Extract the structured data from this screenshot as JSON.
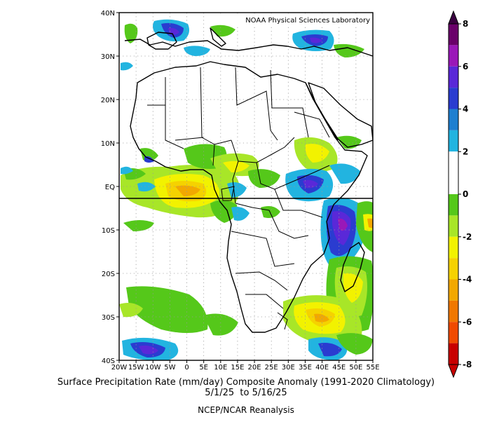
{
  "credit": "NOAA Physical Sciences Laboratory",
  "lat_labels": [
    "40N",
    "30N",
    "20N",
    "10N",
    "EQ",
    "10S",
    "20S",
    "30S",
    "40S"
  ],
  "lon_labels": [
    "20W",
    "15W",
    "10W",
    "5W",
    "0",
    "5E",
    "10E",
    "15E",
    "20E",
    "25E",
    "30E",
    "35E",
    "40E",
    "45E",
    "50E",
    "55E"
  ],
  "colorbar": {
    "labels": [
      "8",
      "6",
      "4",
      "2",
      "0",
      "-2",
      "-4",
      "-6",
      "-8"
    ],
    "colors": [
      "#6a006a",
      "#9a18b8",
      "#5a28d8",
      "#2a3cd0",
      "#1f7fd0",
      "#22b4e0",
      "#ffffff",
      "#ffffff",
      "#55c81a",
      "#a8e628",
      "#f2f200",
      "#f5d200",
      "#f2a800",
      "#f07800",
      "#f04a00",
      "#c80000"
    ]
  },
  "caption": {
    "line1": "Surface Precipitation Rate (mm/day) Composite Anomaly (1991-2020 Climatology)",
    "line2": "5/1/25  to 5/16/25",
    "line3": "NCEP/NCAR Reanalysis"
  }
}
